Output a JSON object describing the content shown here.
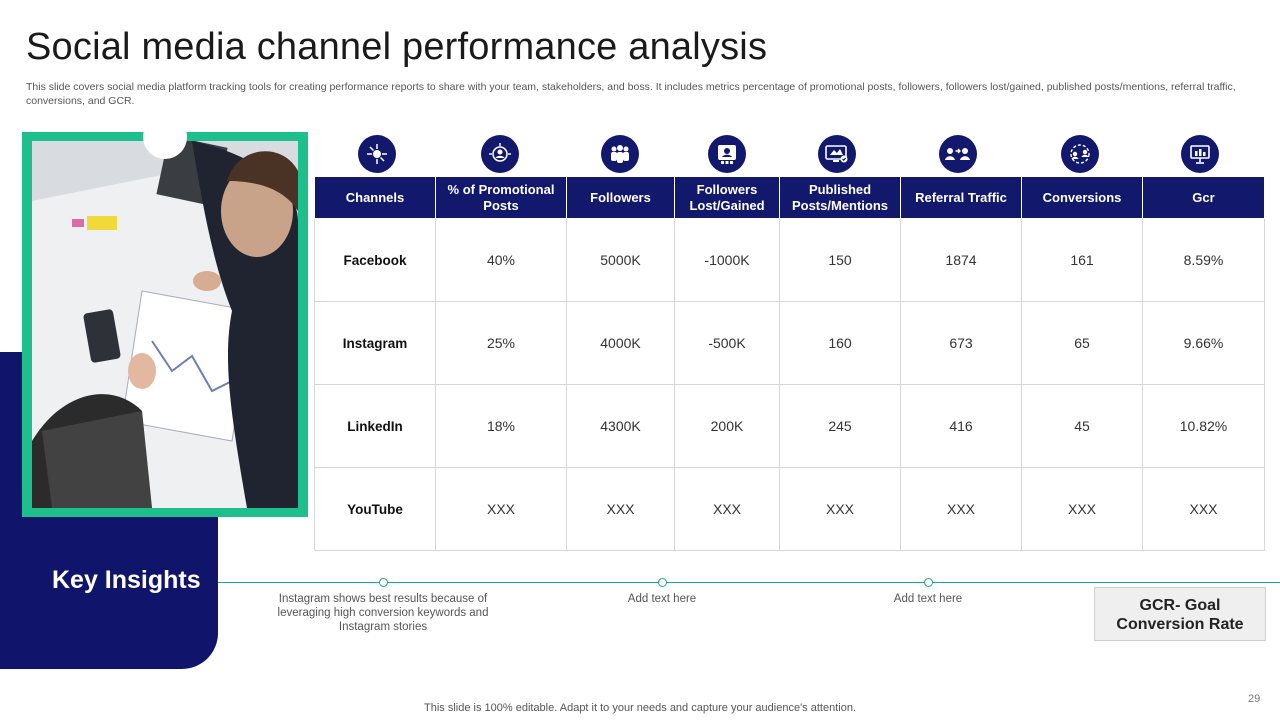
{
  "title": "Social media channel performance analysis",
  "subtitle": "This slide covers social media platform tracking tools for creating performance reports to share with your team, stakeholders, and boss. It includes metrics percentage of promotional posts, followers, followers lost/gained, published posts/mentions, referral traffic, conversions, and GCR.",
  "table": {
    "headers": [
      "Channels",
      "% of Promotional Posts",
      "Followers",
      "Followers Lost/Gained",
      "Published Posts/Mentions",
      "Referral Traffic",
      "Conversions",
      "Gcr"
    ],
    "icons": [
      "network-icon",
      "target-audience-icon",
      "team-icon",
      "profile-card-icon",
      "monitor-posts-icon",
      "referral-icon",
      "conversion-icon",
      "presentation-icon"
    ],
    "rows": [
      {
        "channel": "Facebook",
        "cells": [
          "40%",
          "5000K",
          "-1000K",
          "150",
          "1874",
          "161",
          "8.59%"
        ]
      },
      {
        "channel": "Instagram",
        "cells": [
          "25%",
          "4000K",
          "-500K",
          "160",
          "673",
          "65",
          "9.66%"
        ]
      },
      {
        "channel": "LinkedIn",
        "cells": [
          "18%",
          "4300K",
          "200K",
          "245",
          "416",
          "45",
          "10.82%"
        ]
      },
      {
        "channel": "YouTube",
        "cells": [
          "XXX",
          "XXX",
          "XXX",
          "XXX",
          "XXX",
          "XXX",
          "XXX"
        ]
      }
    ]
  },
  "insights": {
    "heading": "Key Insights",
    "items": [
      "Instagram shows best results because of leveraging high conversion keywords and Instagram stories",
      "Add text here",
      "Add text here"
    ],
    "gcr_note": "GCR- Goal Conversion Rate"
  },
  "footer": "This slide is 100% editable. Adapt it to your needs and capture your audience's attention.",
  "page_number": "29",
  "colors": {
    "navy": "#12186b",
    "accent_green": "#1dbf8c",
    "timeline": "#1aa594"
  }
}
